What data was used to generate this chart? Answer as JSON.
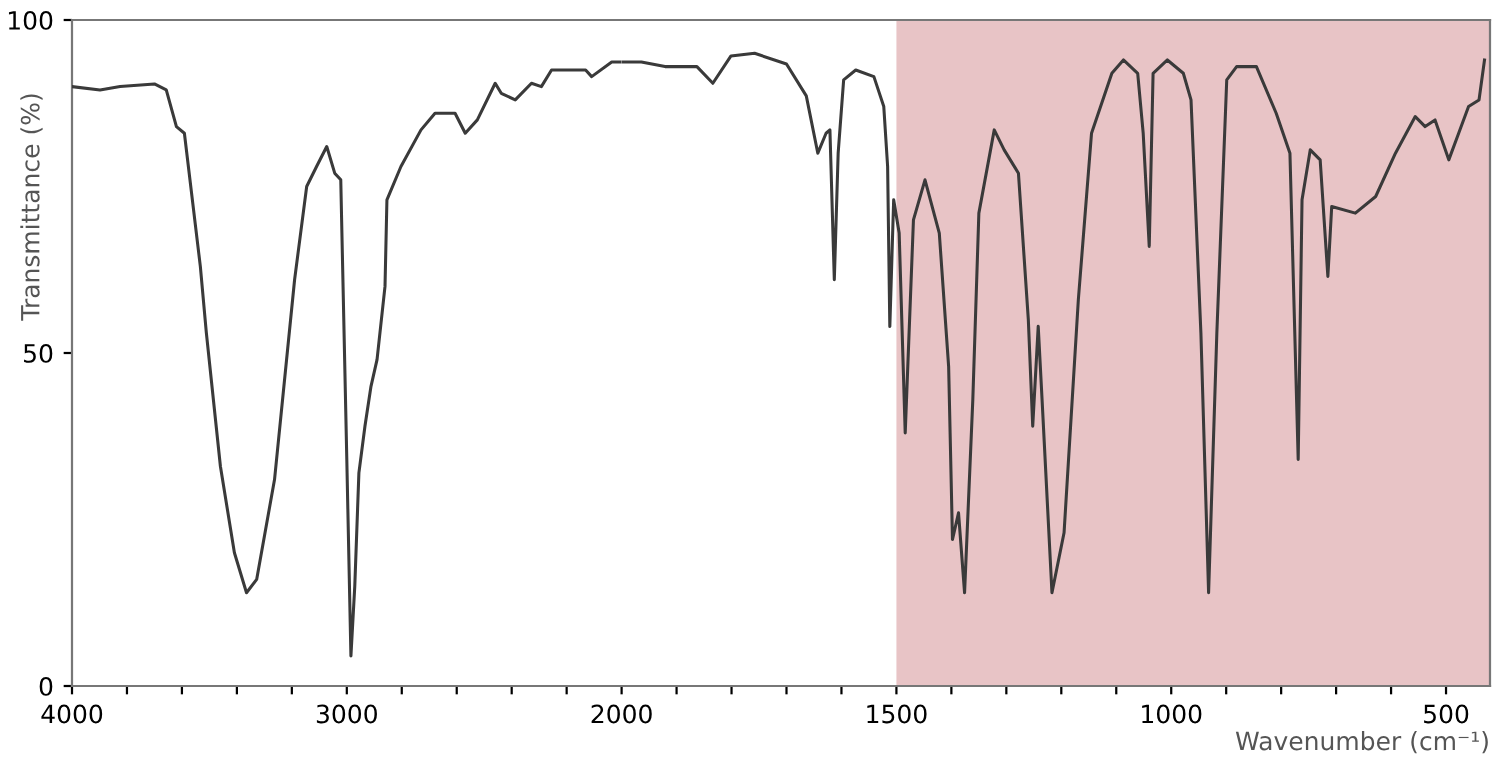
{
  "chart_data": [
    {
      "type": "line",
      "ylabel": "Transmittance (%)",
      "xlim": [
        4000,
        2000
      ],
      "ylim": [
        0,
        100
      ],
      "xticks": [
        4000,
        {
          "value": 3800,
          "label": null
        },
        {
          "value": 3600,
          "label": null
        },
        {
          "value": 3400,
          "label": null
        },
        {
          "value": 3200,
          "label": null
        },
        3000,
        {
          "value": 2800,
          "label": null
        },
        {
          "value": 2600,
          "label": null
        },
        {
          "value": 2400,
          "label": null
        },
        {
          "value": 2200,
          "label": null
        },
        2000
      ],
      "yticks": [
        0,
        50,
        100
      ],
      "series": [
        {
          "color": "#3a3a3a",
          "x": [
            4000,
            3898,
            3825,
            3700,
            3657,
            3620,
            3591,
            3533,
            3511,
            3460,
            3409,
            3365,
            3328,
            3263,
            3190,
            3146,
            3110,
            3073,
            3044,
            3022,
            3000,
            2985,
            2971,
            2956,
            2934,
            2912,
            2890,
            2861,
            2854,
            2803,
            2730,
            2679,
            2606,
            2569,
            2525,
            2460,
            2438,
            2387,
            2328,
            2292,
            2255,
            2131,
            2109,
            2036,
            2000
          ],
          "values": [
            90,
            89.5,
            90,
            90.4,
            89.5,
            84,
            83,
            63,
            53,
            33,
            20,
            14,
            16,
            31,
            61,
            75,
            78,
            81,
            77,
            76,
            34,
            4.5,
            15,
            32,
            39,
            45,
            49,
            60,
            73,
            78,
            83.5,
            86,
            86,
            83,
            85,
            90.5,
            89,
            88,
            90.5,
            90,
            92.5,
            92.5,
            91.5,
            93.7,
            93.7
          ]
        }
      ]
    },
    {
      "type": "line",
      "xlabel": "Wavenumber (cm⁻¹)",
      "xlim": [
        2000,
        420
      ],
      "ylim": [
        0,
        100
      ],
      "tick_labels": "x",
      "xticks": [
        {
          "value": 1900,
          "label": null
        },
        {
          "value": 1800,
          "label": null
        },
        {
          "value": 1700,
          "label": null
        },
        {
          "value": 1600,
          "label": null
        },
        1500,
        {
          "value": 1400,
          "label": null
        },
        {
          "value": 1300,
          "label": null
        },
        {
          "value": 1200,
          "label": null
        },
        {
          "value": 1100,
          "label": null
        },
        1000,
        {
          "value": 900,
          "label": null
        },
        {
          "value": 800,
          "label": null
        },
        {
          "value": 700,
          "label": null
        },
        {
          "value": 600,
          "label": null
        },
        500
      ],
      "bands": [
        {
          "axis": "x",
          "from": 1500,
          "to": 420,
          "color": "#e8c4c6"
        }
      ],
      "series": [
        {
          "color": "#3a3a3a",
          "x": [
            2000,
            1964,
            1921,
            1863,
            1834,
            1801,
            1758,
            1700,
            1664,
            1643,
            1628,
            1621,
            1613,
            1606,
            1596,
            1574,
            1541,
            1523,
            1516,
            1512,
            1505,
            1495,
            1484,
            1469,
            1448,
            1422,
            1405,
            1398,
            1387,
            1376,
            1361,
            1350,
            1322,
            1304,
            1278,
            1260,
            1252,
            1242,
            1235,
            1217,
            1195,
            1169,
            1145,
            1108,
            1087,
            1061,
            1051,
            1040,
            1033,
            1007,
            978,
            964,
            946,
            932,
            917,
            899,
            881,
            845,
            809,
            784,
            769,
            762,
            747,
            729,
            715,
            708,
            665,
            628,
            592,
            556,
            538,
            520,
            495,
            477,
            459,
            440,
            430
          ],
          "values": [
            93.7,
            93.7,
            93,
            93,
            90.5,
            94.6,
            95,
            93.4,
            88.6,
            80,
            83,
            83.5,
            61,
            80,
            91,
            92.5,
            91.5,
            87,
            78,
            54,
            73,
            68,
            38,
            70,
            76,
            68,
            48,
            22,
            26,
            14,
            43,
            71,
            83.5,
            80.5,
            77,
            55,
            39,
            54,
            43,
            14,
            23,
            58,
            83,
            92,
            94,
            92,
            83,
            66,
            92,
            94,
            92,
            88,
            53,
            14,
            53,
            91,
            93,
            93,
            86,
            80,
            34,
            73,
            80.5,
            79,
            61.5,
            72,
            71,
            73.5,
            80,
            85.5,
            84,
            85,
            79,
            83,
            87,
            88,
            94
          ]
        }
      ]
    }
  ]
}
